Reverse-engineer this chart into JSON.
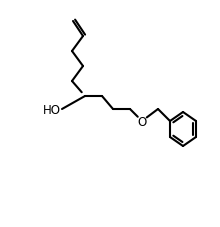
{
  "background_color": "#ffffff",
  "line_color": "#000000",
  "line_width": 1.5,
  "bond_width": 1.5,
  "figsize": [
    2.2,
    2.28
  ],
  "dpi": 100,
  "ho_label": "HO",
  "o_label": "O",
  "font_size": 9
}
